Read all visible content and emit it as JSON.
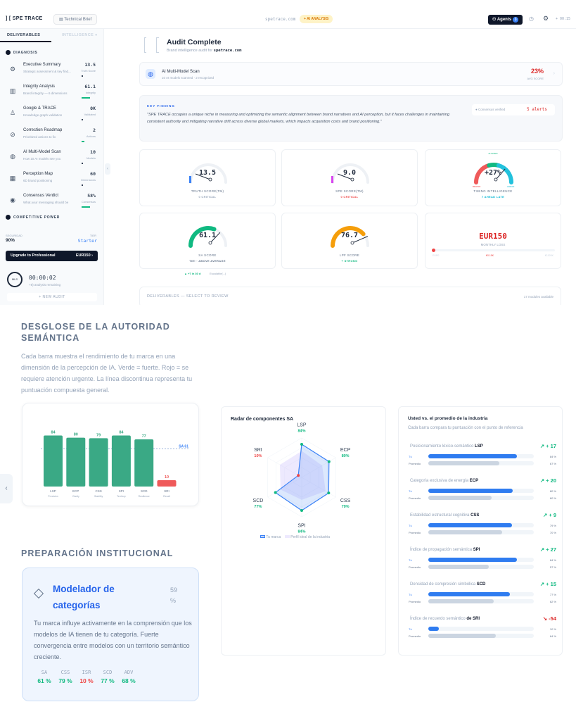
{
  "header": {
    "logo": "] [  SPE TRACE",
    "brief": "Technical Brief",
    "domain": "spetrace.com",
    "badge": "+ AI ANALYSIS",
    "agents": "Agents",
    "agents_count": "3",
    "timer": "+ 00:15"
  },
  "sidebar": {
    "tabs": [
      "DELIVERABLES",
      "INTELLIGENCE ●"
    ],
    "diagnosis_title": "DIAGNOSIS",
    "items": [
      {
        "title": "Executive Summary",
        "sub": "Strategic assessment & key find...",
        "value": "13.5",
        "label": "Truth Score",
        "icon": "brain-icon",
        "fill": 5
      },
      {
        "title": "Integrity Analysis",
        "sub": "Brand integrity — 6 dimensions",
        "value": "61.1",
        "label": "Integrity",
        "icon": "bar-chart-icon",
        "fill": 61
      },
      {
        "title": "Google & TRACE",
        "sub": "Knowledge graph validation",
        "value": "0K",
        "label": "Validated",
        "icon": "network-icon",
        "fill": 3
      },
      {
        "title": "Correction Roadmap",
        "sub": "Prioritized actions to fix",
        "value": "2",
        "label": "Actions",
        "icon": "compass-icon",
        "fill": 20
      },
      {
        "title": "AI Multi-Model Scan",
        "sub": "How 10 AI models see you",
        "value": "10",
        "label": "Models",
        "icon": "globe-icon",
        "fill": 3
      },
      {
        "title": "Perception Map",
        "sub": "6D brand positioning",
        "value": "60",
        "label": "Dimensions",
        "icon": "map-icon",
        "fill": 3
      },
      {
        "title": "Consensus Verdict",
        "sub": "What your messaging should be",
        "value": "58%",
        "label": "Consensus",
        "icon": "target-icon",
        "fill": 58
      }
    ],
    "competitive_title": "COMPETITIVE POWER",
    "security_label": "SEGURIDAD",
    "security_value": "90%",
    "tier_label": "TIER",
    "tier_value": "Starter",
    "upgrade_label": "Upgrade to Professional",
    "upgrade_price": "EUR150  ›",
    "timer_badge": "MLS",
    "timer": "00:00:02",
    "timer_sub": "+8) analysis remaining",
    "new_audit": "+  NEW AUDIT"
  },
  "main": {
    "title": "Audit Complete",
    "subtitle": "Brand intelligence audit for ",
    "subtitle_domain": "spetrace.com",
    "scan": {
      "title": "AI Multi-Model Scan",
      "sub": "10 AI models scanned · 2 recognized",
      "value": "23%",
      "label": "AVG SCORE"
    },
    "finding": {
      "label": "KEY FINDING",
      "text": "\"SPE TRACE occupies a unique niche in measuring and optimizing the semantic alignment between brand narratives and AI perception, but it faces challenges in maintaining consistent authority and mitigating narrative drift across diverse global markets, which impacts acquisition costs and brand positioning.\"",
      "consensus": "● Consensus verified",
      "alerts": "5 alerts"
    },
    "gauges": [
      {
        "value": "13.5",
        "num": 13.5,
        "label": "TRUTH SCORE(TM)",
        "status": "0 CRITICAL",
        "status_color": "#94a3b8",
        "color": "#3b82f6"
      },
      {
        "value": "9.0",
        "num": 9.0,
        "label": "SPE SCORE(TM)",
        "status": "0 CRITICAL",
        "status_color": "#ef4444",
        "color": "#d946ef"
      },
      {
        "value": "+27%",
        "num": 60,
        "label": "TIMING INTELLIGENCE",
        "status": "7 AHEAD LATE",
        "status_color": "#06b6d4",
        "color": "#06b6d4",
        "top": "ALIGNED",
        "left": "BEHIND",
        "right": "AHEAD"
      },
      {
        "value": "61.1",
        "num": 61.1,
        "label": "SA SCORE",
        "status": "TIE! · ABOVE AVERAGE",
        "status_color": "#64748b",
        "color": "#10b981"
      },
      {
        "value": "76.7",
        "num": 76.7,
        "label": "LPF SCORE",
        "status": "+ STRONG",
        "status_color": "#10b981",
        "color": "#f59e0b"
      }
    ],
    "sa_trend": "▲ +7 in 30 d",
    "sa_trend_sub": "Escalable(...)",
    "loss": {
      "value": "EUR150",
      "label": "MONTHLY LOSS",
      "min": "EUR0",
      "mid": "€0.15K",
      "max": "€1000K",
      "fill": 1
    },
    "deliverables": "DELIVERABLES — SELECT TO REVIEW",
    "modules": "17 modules available"
  },
  "breakdown": {
    "title": "DESGLOSE DE LA AUTORIDAD SEMÁNTICA",
    "desc": "Cada barra muestra el rendimiento de tu marca en una dimensión de la percepción de IA. Verde = fuerte. Rojo = se requiere atención urgente. La línea discontinua representa tu puntuación compuesta general."
  },
  "chart_data": [
    {
      "type": "bar",
      "categories": [
        "LSP",
        "ECP",
        "CSS",
        "SPI",
        "SCD",
        "SRI"
      ],
      "sublabels": [
        "Precision",
        "Clarity",
        "Stability",
        "Territory",
        "Resilience",
        "Recall"
      ],
      "values": [
        84,
        80,
        79,
        84,
        77,
        10
      ],
      "colors": [
        "#3aa985",
        "#3aa985",
        "#3aa985",
        "#3aa985",
        "#3aa985",
        "#ef5a5a"
      ],
      "reference": {
        "label": "SA 61",
        "value": 61
      },
      "ylim": [
        0,
        100
      ]
    },
    {
      "type": "radar",
      "title": "Radar de componentes SA",
      "axes": [
        "LSP",
        "ECP",
        "CSS",
        "SPI",
        "SCD",
        "SRI"
      ],
      "series": [
        {
          "name": "Tu marca",
          "values": [
            84,
            80,
            79,
            84,
            77,
            10
          ],
          "color": "#3b82f6"
        },
        {
          "name": "Perfil ideal de la industria",
          "values": [
            67,
            60,
            70,
            57,
            62,
            64
          ],
          "color": "#c4b5fd"
        }
      ],
      "ylim": [
        0,
        100
      ]
    },
    {
      "type": "bar",
      "orientation": "horizontal",
      "title": "Usted vs. el promedio de la industria",
      "subtitle": "Cada barra compara tu puntuación con el punto de referencia",
      "you_label": "Tú",
      "avg_label": "Promedio",
      "rows": [
        {
          "name": "Posicionamiento léxico-semántico",
          "code": "LSP",
          "you": 84,
          "avg": 67,
          "delta": "↗ + 17",
          "pos": true
        },
        {
          "name": "Categoría exclusiva de energía",
          "code": "ECP",
          "you": 80,
          "avg": 60,
          "delta": "↗ + 20",
          "pos": true
        },
        {
          "name": "Estabilidad estructural cognitiva",
          "code": "CSS",
          "you": 79,
          "avg": 70,
          "delta": "↗ + 9",
          "pos": true
        },
        {
          "name": "Índice de propagación semántica",
          "code": "SPI",
          "you": 84,
          "avg": 57,
          "delta": "↗ + 27",
          "pos": true
        },
        {
          "name": "Densidad de compresión simbólica",
          "code": "SCD",
          "you": 77,
          "avg": 62,
          "delta": "↗ + 15",
          "pos": true
        },
        {
          "name": "Índice de recuerdo semántico",
          "code": "de SRI",
          "you": 10,
          "avg": 64,
          "delta": "↘ -54",
          "pos": false
        }
      ]
    }
  ],
  "readiness": {
    "title": "PREPARACIÓN INSTITUCIONAL",
    "card_title": "Modelador de categorías",
    "pct": "59 %",
    "desc": "Tu marca influye activamente en la comprensión que los modelos de IA tienen de tu categoría. Fuerte convergencia entre modelos con un territorio semántico creciente.",
    "metrics": [
      {
        "k": "SA",
        "v": "61 %",
        "c": "#10b981"
      },
      {
        "k": "CSS",
        "v": "79 %",
        "c": "#10b981"
      },
      {
        "k": "ISR",
        "v": "10 %",
        "c": "#ef4444"
      },
      {
        "k": "SCD",
        "v": "77 %",
        "c": "#10b981"
      },
      {
        "k": "ADV",
        "v": "68 %",
        "c": "#10b981"
      }
    ]
  }
}
